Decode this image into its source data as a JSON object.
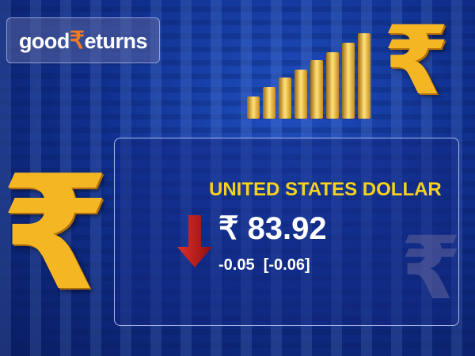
{
  "logo": {
    "text_pre": "good",
    "text_symbol": "₹",
    "text_post": "eturns"
  },
  "currency": {
    "name": "UNITED STATES DOLLAR",
    "price": "₹ 83.92",
    "change": "-0.05",
    "change_percent": "[-0.06]",
    "direction": "down",
    "direction_icon": "arrow-down-icon"
  },
  "colors": {
    "title": "#f7d21c",
    "down": "#c0181a",
    "logo_accent": "#f47a20",
    "gold": "#f5b623"
  }
}
